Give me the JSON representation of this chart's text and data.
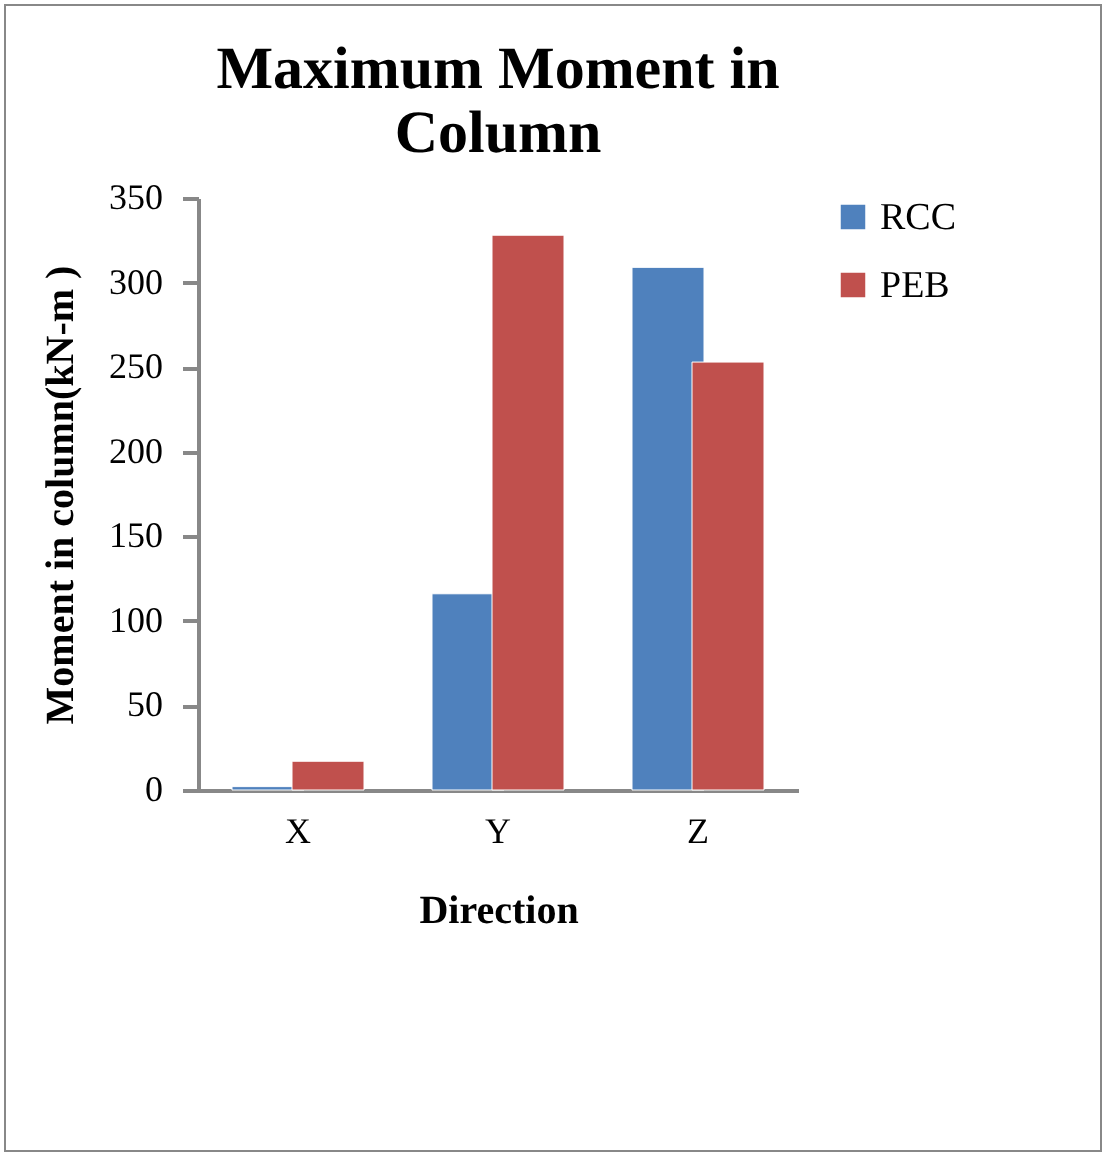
{
  "chart_data": {
    "type": "bar",
    "title": "Maximum Moment in Column",
    "xlabel": "Direction",
    "ylabel": "Moment in column(kN-m )",
    "categories": [
      "X",
      "Y",
      "Z"
    ],
    "series": [
      {
        "name": "RCC",
        "color": "#4f81bd",
        "values": [
          2,
          116,
          309
        ]
      },
      {
        "name": "PEB",
        "color": "#c0504d",
        "values": [
          17,
          328,
          253
        ]
      }
    ],
    "ylim": [
      0,
      350
    ],
    "yticks": [
      0,
      50,
      100,
      150,
      200,
      250,
      300,
      350
    ],
    "grid": false,
    "legend": "right"
  }
}
